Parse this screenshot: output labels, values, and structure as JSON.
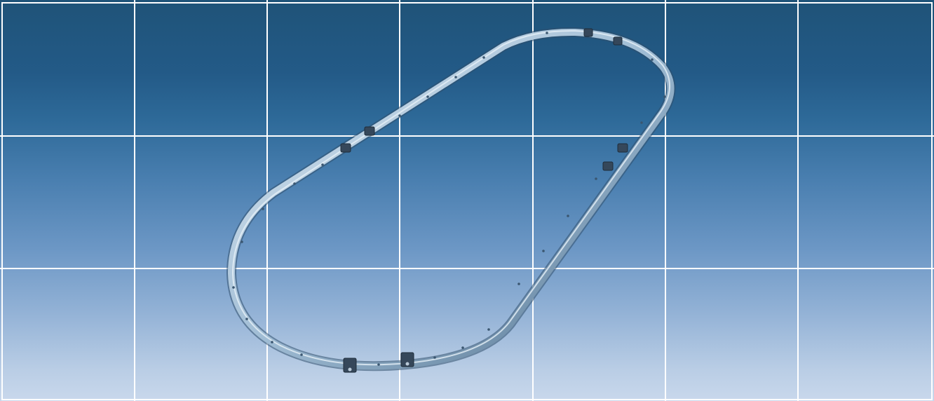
{
  "scene": {
    "background_top": "#1f5378",
    "background_bottom": "#c9d8ec",
    "grid_color": "#ffffff",
    "track_color": "#8fb0cc",
    "track_highlight": "#dce9f3",
    "track_shadow": "#2f4f6c",
    "clamp_color": "#35475a",
    "grid_columns": 7,
    "grid_rows": 3,
    "clamp_count": 8
  }
}
